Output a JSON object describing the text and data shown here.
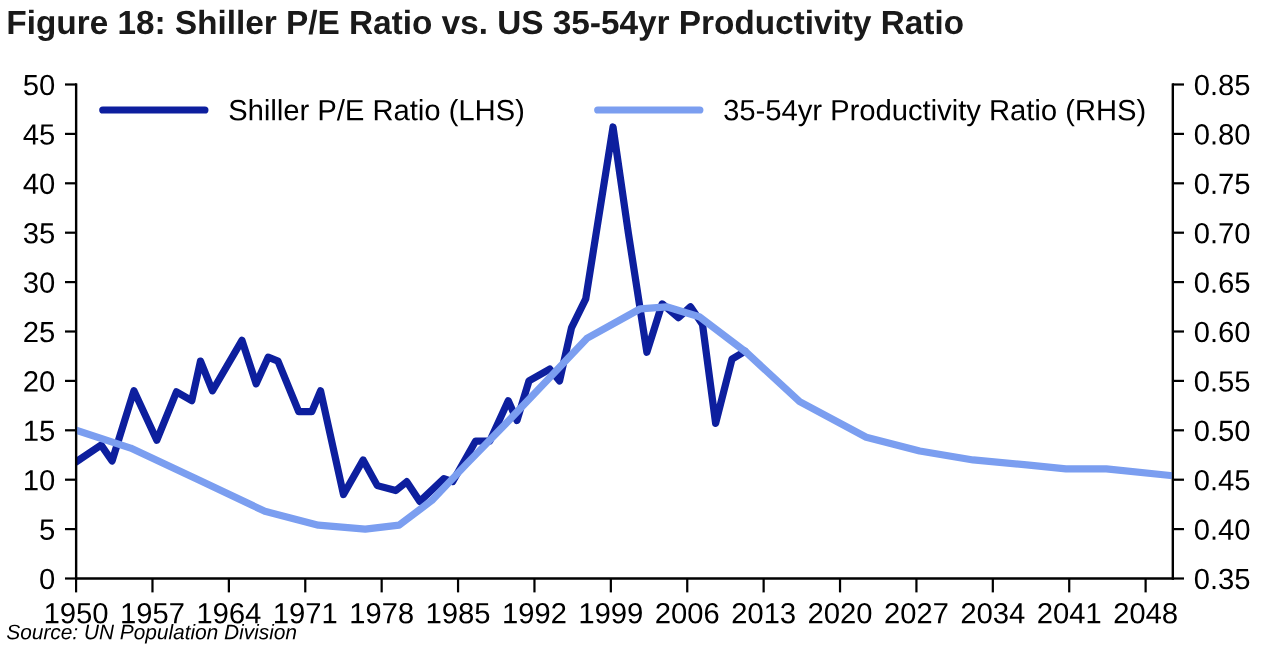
{
  "chart_data": {
    "type": "line",
    "title": "Figure 18: Shiller P/E Ratio vs. US 35-54yr Productivity Ratio",
    "annotations": [
      "Source: UN Population Division"
    ],
    "legend": "top",
    "grid": false,
    "xlim": [
      1950,
      2050.5
    ],
    "xticks": [
      1950,
      1957,
      1964,
      1971,
      1978,
      1985,
      1992,
      1999,
      2006,
      2013,
      2020,
      2027,
      2034,
      2041,
      2048
    ],
    "ylim": [
      0,
      50
    ],
    "yticks": [
      0,
      5,
      10,
      15,
      20,
      25,
      30,
      35,
      40,
      45,
      50
    ],
    "y2lim": [
      0.35,
      0.85
    ],
    "y2ticks": [
      {
        "value": 0.35,
        "label": "0.35"
      },
      {
        "value": 0.4,
        "label": "0.40"
      },
      {
        "value": 0.45,
        "label": "0.45"
      },
      {
        "value": 0.5,
        "label": "0.50"
      },
      {
        "value": 0.55,
        "label": "0.55"
      },
      {
        "value": 0.6,
        "label": "0.60"
      },
      {
        "value": 0.65,
        "label": "0.65"
      },
      {
        "value": 0.7,
        "label": "0.70"
      },
      {
        "value": 0.75,
        "label": "0.75"
      },
      {
        "value": 0.8,
        "label": "0.80"
      },
      {
        "value": 0.85,
        "label": "0.85"
      }
    ],
    "series": [
      {
        "name": "Shiller P/E Ratio (LHS)",
        "color": "#0d1f9e",
        "x": [
          1950,
          1952.3,
          1953.3,
          1955.3,
          1957.4,
          1959.2,
          1960.6,
          1961.4,
          1962.5,
          1965.2,
          1966.5,
          1967.6,
          1968.5,
          1970.4,
          1971.6,
          1972.4,
          1974.5,
          1976.3,
          1977.6,
          1979.3,
          1980.3,
          1981.5,
          1983.7,
          1984.5,
          1986.6,
          1987.9,
          1989.6,
          1990.4,
          1991.5,
          1993.4,
          1994.3,
          1995.4,
          1996.7,
          1999.2,
          2000.6,
          2002.3,
          2003.7,
          2005.2,
          2006.3,
          2007.4,
          2008.6,
          2010.1,
          2011.3
        ],
        "values": [
          11.8,
          13.5,
          11.9,
          19,
          14,
          18.9,
          18,
          22,
          19,
          24.1,
          19.7,
          22.4,
          22,
          16.9,
          16.9,
          19,
          8.5,
          12,
          9.4,
          8.9,
          9.8,
          7.8,
          10.1,
          9.8,
          13.9,
          13.9,
          18,
          16,
          20,
          21.2,
          20,
          25.4,
          28.3,
          45.7,
          35,
          22.9,
          27.8,
          26.4,
          27.5,
          25.7,
          15.7,
          22.2,
          23
        ]
      },
      {
        "name": "35-54yr Productivity Ratio (RHS)",
        "color": "#7b9ef0",
        "axis": "y2",
        "x": [
          1950,
          1955,
          1961.2,
          1967.3,
          1972.2,
          1976.5,
          1979.6,
          1982.6,
          1985.7,
          1989.4,
          1993.1,
          1996.8,
          2001.7,
          2004.1,
          2007.1,
          2011.4,
          2016.3,
          2022.4,
          2027.3,
          2032.2,
          2037.1,
          2040.7,
          2044.4,
          2050.5
        ],
        "values": [
          0.5,
          0.482,
          0.45,
          0.418,
          0.404,
          0.4,
          0.404,
          0.429,
          0.465,
          0.507,
          0.55,
          0.593,
          0.623,
          0.625,
          0.615,
          0.579,
          0.529,
          0.493,
          0.479,
          0.47,
          0.465,
          0.461,
          0.461,
          0.454
        ]
      }
    ]
  }
}
